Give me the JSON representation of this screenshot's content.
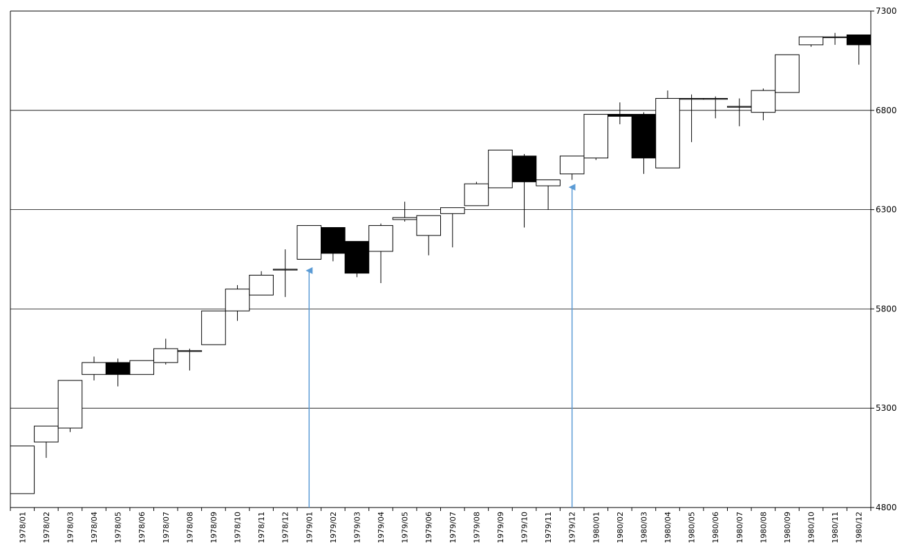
{
  "chart_data": {
    "type": "candlestick",
    "title": "",
    "xlabel": "",
    "ylabel": "",
    "ylim": [
      4800,
      7300
    ],
    "y_ticks": [
      4800,
      5300,
      5800,
      6300,
      6800,
      7300
    ],
    "grid": "horizontal",
    "y_axis_position": "right",
    "colors": {
      "up_body": "#ffffff",
      "down_body": "#000000",
      "outline": "#000000",
      "gridline": "#000000",
      "annotation": "#5b9bd5"
    },
    "categories": [
      "1978/01",
      "1978/02",
      "1978/03",
      "1978/04",
      "1978/05",
      "1978/06",
      "1978/07",
      "1978/08",
      "1978/09",
      "1978/10",
      "1978/11",
      "1978/12",
      "1979/01",
      "1979/02",
      "1979/03",
      "1979/04",
      "1979/05",
      "1979/06",
      "1979/07",
      "1979/08",
      "1979/09",
      "1979/10",
      "1979/11",
      "1979/12",
      "1980/01",
      "1980/02",
      "1980/03",
      "1980/04",
      "1980/05",
      "1980/06",
      "1980/07",
      "1980/08",
      "1980/09",
      "1980/10",
      "1980/11",
      "1980/12"
    ],
    "ohlc": [
      {
        "o": 4870,
        "h": 5110,
        "l": 4870,
        "c": 5110
      },
      {
        "o": 5130,
        "h": 5210,
        "l": 5050,
        "c": 5210
      },
      {
        "o": 5200,
        "h": 5440,
        "l": 5180,
        "c": 5440
      },
      {
        "o": 5470,
        "h": 5560,
        "l": 5440,
        "c": 5530
      },
      {
        "o": 5530,
        "h": 5550,
        "l": 5410,
        "c": 5470
      },
      {
        "o": 5470,
        "h": 5540,
        "l": 5470,
        "c": 5540
      },
      {
        "o": 5530,
        "h": 5650,
        "l": 5520,
        "c": 5600
      },
      {
        "o": 5590,
        "h": 5600,
        "l": 5490,
        "c": 5590
      },
      {
        "o": 5620,
        "h": 5790,
        "l": 5620,
        "c": 5790
      },
      {
        "o": 5790,
        "h": 5920,
        "l": 5740,
        "c": 5900
      },
      {
        "o": 5870,
        "h": 5990,
        "l": 5870,
        "c": 5970
      },
      {
        "o": 6000,
        "h": 6100,
        "l": 5860,
        "c": 6000
      },
      {
        "o": 6050,
        "h": 6220,
        "l": 6050,
        "c": 6220
      },
      {
        "o": 6210,
        "h": 6210,
        "l": 6040,
        "c": 6080
      },
      {
        "o": 6140,
        "h": 6140,
        "l": 5960,
        "c": 5980
      },
      {
        "o": 6090,
        "h": 6230,
        "l": 5930,
        "c": 6220
      },
      {
        "o": 6250,
        "h": 6340,
        "l": 6240,
        "c": 6260
      },
      {
        "o": 6170,
        "h": 6270,
        "l": 6070,
        "c": 6270
      },
      {
        "o": 6280,
        "h": 6310,
        "l": 6110,
        "c": 6310
      },
      {
        "o": 6320,
        "h": 6440,
        "l": 6320,
        "c": 6430
      },
      {
        "o": 6410,
        "h": 6600,
        "l": 6410,
        "c": 6600
      },
      {
        "o": 6570,
        "h": 6580,
        "l": 6210,
        "c": 6440
      },
      {
        "o": 6420,
        "h": 6450,
        "l": 6300,
        "c": 6450
      },
      {
        "o": 6480,
        "h": 6570,
        "l": 6450,
        "c": 6570
      },
      {
        "o": 6560,
        "h": 6780,
        "l": 6550,
        "c": 6780
      },
      {
        "o": 6780,
        "h": 6840,
        "l": 6730,
        "c": 6770
      },
      {
        "o": 6780,
        "h": 6790,
        "l": 6480,
        "c": 6560
      },
      {
        "o": 6510,
        "h": 6900,
        "l": 6510,
        "c": 6860
      },
      {
        "o": 6860,
        "h": 6880,
        "l": 6640,
        "c": 6860
      },
      {
        "o": 6860,
        "h": 6870,
        "l": 6760,
        "c": 6860
      },
      {
        "o": 6820,
        "h": 6860,
        "l": 6720,
        "c": 6820
      },
      {
        "o": 6790,
        "h": 6910,
        "l": 6750,
        "c": 6900
      },
      {
        "o": 6890,
        "h": 7080,
        "l": 6890,
        "c": 7080
      },
      {
        "o": 7130,
        "h": 7170,
        "l": 7120,
        "c": 7170
      },
      {
        "o": 7170,
        "h": 7190,
        "l": 7130,
        "c": 7170
      },
      {
        "o": 7180,
        "h": 7180,
        "l": 7030,
        "c": 7130
      }
    ],
    "annotations": [
      {
        "type": "arrow",
        "category": "1979/01",
        "points_to": 6000
      },
      {
        "type": "arrow",
        "category": "1979/12",
        "points_to": 6420
      }
    ]
  }
}
